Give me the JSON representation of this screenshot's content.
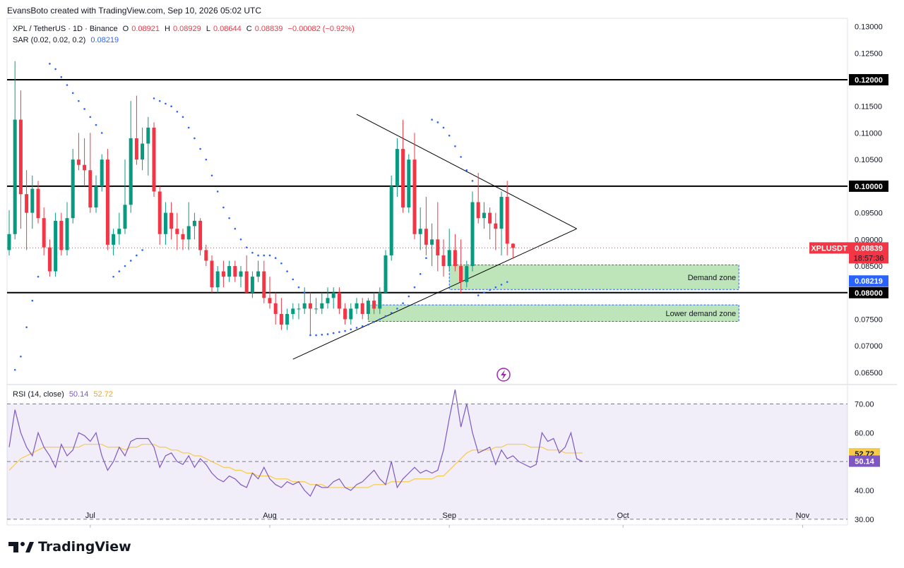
{
  "header": {
    "created_by": "EvansBoto created with TradingView.com, Sep 10, 2026 05:02 UTC"
  },
  "legend": {
    "symbol": "XPL / TetherUS · 1D · Binance",
    "o_label": "O",
    "o_value": "0.08921",
    "h_label": "H",
    "h_value": "0.08929",
    "l_label": "L",
    "l_value": "0.08644",
    "c_label": "C",
    "c_value": "0.08839",
    "change": "−0.00082 (−0.92%)",
    "sar_label": "SAR (0.02, 0.02, 0.2)",
    "sar_value": "0.08219"
  },
  "rsi_legend": {
    "label": "RSI (14, close)",
    "rsi_value": "50.14",
    "ma_value": "52.72"
  },
  "brand": {
    "name": "TradingView"
  },
  "markers": {
    "flash_icon": "lightning-icon"
  },
  "colors": {
    "up": "#089981",
    "down": "#f23645",
    "sar": "#2962ff",
    "rsi": "#7e57c2",
    "rsi_ma": "#f7c948",
    "zone_fill": "#b7e1b1",
    "zone_border": "#2962ff"
  },
  "chart_data": [
    {
      "type": "candlestick",
      "symbol": "XPLUSDT",
      "ylim": [
        0.063,
        0.131
      ],
      "y_ticks": [
        "0.13000",
        "0.12500",
        "0.12000",
        "0.11500",
        "0.11000",
        "0.10500",
        "0.10000",
        "0.09500",
        "0.09000",
        "0.08500",
        "0.08000",
        "0.07500",
        "0.07000",
        "0.06500"
      ],
      "x_ticks": [
        "Jul",
        "Aug",
        "Sep",
        "Oct",
        "Nov"
      ],
      "x_tick_days": [
        14,
        45,
        76,
        106,
        137
      ],
      "last_price_label": "XPLUSDT",
      "last_price": "0.08839",
      "countdown": "18:57:36",
      "sar_price": "0.08219",
      "horizontal_levels": [
        {
          "price": 0.12,
          "label": "0.12000"
        },
        {
          "price": 0.1,
          "label": "0.10000"
        },
        {
          "price": 0.08,
          "label": "0.08000"
        }
      ],
      "zones": [
        {
          "name": "Demand zone",
          "from_day": 76,
          "to_day": 126,
          "low": 0.0806,
          "high": 0.0852
        },
        {
          "name": "Lower demand zone",
          "from_day": 62,
          "to_day": 126,
          "low": 0.0746,
          "high": 0.0777
        }
      ],
      "triangle": {
        "upper": [
          [
            60,
            0.1135
          ],
          [
            98,
            0.092
          ]
        ],
        "lower": [
          [
            49,
            0.0675
          ],
          [
            98,
            0.092
          ]
        ]
      },
      "candles": [
        [
          0.088,
          0.0955,
          0.087,
          0.091
        ],
        [
          0.091,
          0.1235,
          0.09,
          0.1125
        ],
        [
          0.1125,
          0.118,
          0.092,
          0.0985
        ],
        [
          0.0985,
          0.103,
          0.088,
          0.095
        ],
        [
          0.095,
          0.102,
          0.092,
          0.0995
        ],
        [
          0.0995,
          0.101,
          0.093,
          0.094
        ],
        [
          0.094,
          0.096,
          0.087,
          0.0885
        ],
        [
          0.0885,
          0.09,
          0.083,
          0.084
        ],
        [
          0.084,
          0.095,
          0.083,
          0.0935
        ],
        [
          0.0935,
          0.095,
          0.087,
          0.088
        ],
        [
          0.088,
          0.097,
          0.087,
          0.094
        ],
        [
          0.094,
          0.107,
          0.093,
          0.105
        ],
        [
          0.105,
          0.11,
          0.103,
          0.104
        ],
        [
          0.104,
          0.109,
          0.1,
          0.103
        ],
        [
          0.103,
          0.11,
          0.095,
          0.096
        ],
        [
          0.096,
          0.102,
          0.095,
          0.1
        ],
        [
          0.1,
          0.106,
          0.099,
          0.105
        ],
        [
          0.105,
          0.107,
          0.088,
          0.089
        ],
        [
          0.089,
          0.092,
          0.087,
          0.091
        ],
        [
          0.091,
          0.095,
          0.089,
          0.092
        ],
        [
          0.092,
          0.105,
          0.091,
          0.0965
        ],
        [
          0.0965,
          0.116,
          0.095,
          0.109
        ],
        [
          0.109,
          0.117,
          0.104,
          0.105
        ],
        [
          0.105,
          0.111,
          0.103,
          0.108
        ],
        [
          0.108,
          0.113,
          0.102,
          0.111
        ],
        [
          0.111,
          0.112,
          0.098,
          0.099
        ],
        [
          0.099,
          0.1,
          0.089,
          0.091
        ],
        [
          0.091,
          0.097,
          0.089,
          0.095
        ],
        [
          0.095,
          0.097,
          0.09,
          0.092
        ],
        [
          0.092,
          0.095,
          0.088,
          0.091
        ],
        [
          0.091,
          0.092,
          0.088,
          0.09
        ],
        [
          0.09,
          0.097,
          0.088,
          0.0925
        ],
        [
          0.0925,
          0.095,
          0.09,
          0.0935
        ],
        [
          0.0935,
          0.094,
          0.087,
          0.088
        ],
        [
          0.088,
          0.089,
          0.085,
          0.086
        ],
        [
          0.086,
          0.087,
          0.08,
          0.081
        ],
        [
          0.081,
          0.085,
          0.08,
          0.084
        ],
        [
          0.084,
          0.086,
          0.081,
          0.083
        ],
        [
          0.083,
          0.086,
          0.082,
          0.085
        ],
        [
          0.085,
          0.086,
          0.082,
          0.083
        ],
        [
          0.083,
          0.085,
          0.081,
          0.084
        ],
        [
          0.084,
          0.087,
          0.08,
          0.08
        ],
        [
          0.08,
          0.084,
          0.079,
          0.083
        ],
        [
          0.083,
          0.086,
          0.082,
          0.084
        ],
        [
          0.084,
          0.086,
          0.078,
          0.079
        ],
        [
          0.079,
          0.083,
          0.077,
          0.078
        ],
        [
          0.078,
          0.08,
          0.074,
          0.076
        ],
        [
          0.076,
          0.079,
          0.073,
          0.074
        ],
        [
          0.074,
          0.077,
          0.073,
          0.076
        ],
        [
          0.076,
          0.078,
          0.075,
          0.077
        ],
        [
          0.077,
          0.078,
          0.075,
          0.077
        ],
        [
          0.077,
          0.081,
          0.076,
          0.078
        ],
        [
          0.078,
          0.08,
          0.072,
          0.077
        ],
        [
          0.077,
          0.079,
          0.076,
          0.077
        ],
        [
          0.077,
          0.08,
          0.076,
          0.078
        ],
        [
          0.078,
          0.081,
          0.077,
          0.079
        ],
        [
          0.079,
          0.081,
          0.077,
          0.08
        ],
        [
          0.08,
          0.081,
          0.076,
          0.077
        ],
        [
          0.077,
          0.078,
          0.074,
          0.075
        ],
        [
          0.075,
          0.078,
          0.074,
          0.077
        ],
        [
          0.077,
          0.079,
          0.076,
          0.078
        ],
        [
          0.078,
          0.079,
          0.075,
          0.076
        ],
        [
          0.076,
          0.079,
          0.075,
          0.0785
        ],
        [
          0.0785,
          0.08,
          0.076,
          0.077
        ],
        [
          0.077,
          0.081,
          0.076,
          0.08
        ],
        [
          0.08,
          0.088,
          0.08,
          0.087
        ],
        [
          0.087,
          0.102,
          0.086,
          0.1
        ],
        [
          0.1,
          0.109,
          0.098,
          0.107
        ],
        [
          0.107,
          0.1125,
          0.095,
          0.096
        ],
        [
          0.096,
          0.106,
          0.095,
          0.105
        ],
        [
          0.105,
          0.11,
          0.09,
          0.091
        ],
        [
          0.091,
          0.096,
          0.088,
          0.092
        ],
        [
          0.092,
          0.098,
          0.087,
          0.089
        ],
        [
          0.089,
          0.093,
          0.085,
          0.09
        ],
        [
          0.09,
          0.097,
          0.084,
          0.087
        ],
        [
          0.087,
          0.09,
          0.083,
          0.085
        ],
        [
          0.085,
          0.092,
          0.084,
          0.088
        ],
        [
          0.088,
          0.091,
          0.084,
          0.085
        ],
        [
          0.085,
          0.09,
          0.08,
          0.082
        ],
        [
          0.082,
          0.086,
          0.081,
          0.085
        ],
        [
          0.085,
          0.099,
          0.084,
          0.097
        ],
        [
          0.097,
          0.1025,
          0.093,
          0.094
        ],
        [
          0.094,
          0.097,
          0.092,
          0.095
        ],
        [
          0.095,
          0.096,
          0.09,
          0.093
        ],
        [
          0.093,
          0.095,
          0.088,
          0.092
        ],
        [
          0.092,
          0.099,
          0.087,
          0.098
        ],
        [
          0.098,
          0.101,
          0.087,
          0.0892
        ],
        [
          0.0892,
          0.0893,
          0.0864,
          0.0884
        ]
      ],
      "sar": [
        [
          1,
          0.0655
        ],
        [
          2,
          0.068
        ],
        [
          3,
          0.0735
        ],
        [
          4,
          0.0785
        ],
        [
          5,
          0.083
        ],
        [
          7,
          0.123
        ],
        [
          8,
          0.122
        ],
        [
          9,
          0.1205
        ],
        [
          10,
          0.119
        ],
        [
          11,
          0.1175
        ],
        [
          12,
          0.116
        ],
        [
          13,
          0.1145
        ],
        [
          14,
          0.113
        ],
        [
          15,
          0.1115
        ],
        [
          16,
          0.11
        ],
        [
          18,
          0.083
        ],
        [
          19,
          0.084
        ],
        [
          20,
          0.085
        ],
        [
          21,
          0.086
        ],
        [
          22,
          0.087
        ],
        [
          23,
          0.088
        ],
        [
          25,
          0.1165
        ],
        [
          26,
          0.116
        ],
        [
          27,
          0.1155
        ],
        [
          28,
          0.115
        ],
        [
          29,
          0.114
        ],
        [
          30,
          0.113
        ],
        [
          31,
          0.111
        ],
        [
          32,
          0.109
        ],
        [
          33,
          0.107
        ],
        [
          34,
          0.105
        ],
        [
          35,
          0.102
        ],
        [
          36,
          0.099
        ],
        [
          37,
          0.096
        ],
        [
          38,
          0.094
        ],
        [
          39,
          0.092
        ],
        [
          40,
          0.09
        ],
        [
          41,
          0.0885
        ],
        [
          42,
          0.0875
        ],
        [
          43,
          0.087
        ],
        [
          44,
          0.087
        ],
        [
          45,
          0.087
        ],
        [
          46,
          0.0865
        ],
        [
          47,
          0.0855
        ],
        [
          48,
          0.084
        ],
        [
          49,
          0.0825
        ],
        [
          50,
          0.081
        ],
        [
          51,
          0.08
        ],
        [
          52,
          0.072
        ],
        [
          53,
          0.072
        ],
        [
          54,
          0.0721
        ],
        [
          55,
          0.0722
        ],
        [
          56,
          0.0724
        ],
        [
          57,
          0.0726
        ],
        [
          58,
          0.0728
        ],
        [
          59,
          0.0731
        ],
        [
          60,
          0.0734
        ],
        [
          61,
          0.0737
        ],
        [
          62,
          0.074
        ],
        [
          63,
          0.0745
        ],
        [
          64,
          0.075
        ],
        [
          65,
          0.0756
        ],
        [
          66,
          0.0762
        ],
        [
          67,
          0.077
        ],
        [
          68,
          0.078
        ],
        [
          69,
          0.0793
        ],
        [
          70,
          0.081
        ],
        [
          71,
          0.0835
        ],
        [
          72,
          0.0865
        ],
        [
          73,
          0.1125
        ],
        [
          74,
          0.112
        ],
        [
          75,
          0.111
        ],
        [
          76,
          0.1095
        ],
        [
          77,
          0.1075
        ],
        [
          78,
          0.1055
        ],
        [
          79,
          0.103
        ],
        [
          80,
          0.101
        ],
        [
          81,
          0.0795
        ],
        [
          82,
          0.08
        ],
        [
          83,
          0.0805
        ],
        [
          84,
          0.081
        ],
        [
          85,
          0.0815
        ],
        [
          86,
          0.082
        ]
      ]
    },
    {
      "type": "line",
      "name": "RSI (14, close)",
      "ylim": [
        28,
        76
      ],
      "y_ticks": [
        "70.00",
        "60.00",
        "50.00",
        "40.00",
        "30.00"
      ],
      "bands": {
        "upper": 70,
        "middle": 50,
        "lower": 30
      },
      "series": [
        {
          "name": "RSI",
          "values": [
            55,
            68,
            60,
            55,
            52,
            60,
            55,
            52,
            48,
            56,
            52,
            54,
            60,
            59,
            57,
            60,
            52,
            47,
            50,
            55,
            52,
            57,
            58,
            58,
            58,
            55,
            48,
            52,
            53,
            50,
            49,
            52,
            48,
            51,
            49,
            46,
            44,
            43,
            45,
            44,
            42,
            41,
            46,
            44,
            48,
            44,
            42,
            41,
            43,
            42,
            43,
            40,
            38,
            42,
            41,
            41,
            43,
            44,
            41,
            40,
            42,
            43,
            45,
            47,
            44,
            42,
            50,
            41,
            44,
            46,
            48,
            46,
            47,
            46,
            47,
            54,
            65,
            75,
            62,
            70,
            60,
            53,
            54,
            55,
            49,
            54,
            51,
            52,
            50,
            49,
            48,
            49,
            60,
            57,
            58,
            53,
            55,
            60,
            51,
            50
          ],
          "rsi_current": "50.14"
        },
        {
          "name": "RSI-based MA",
          "values": [
            47,
            49,
            51,
            52,
            53,
            54,
            55,
            55,
            55,
            55,
            55,
            55,
            55,
            56,
            56,
            56,
            56,
            55,
            55,
            55,
            54,
            55,
            55,
            56,
            56,
            56,
            55,
            55,
            54,
            54,
            53,
            53,
            52,
            52,
            51,
            50,
            49,
            48,
            48,
            47,
            47,
            46,
            46,
            45,
            45,
            45,
            44,
            44,
            44,
            43,
            43,
            43,
            42,
            42,
            42,
            41,
            41,
            41,
            41,
            41,
            41,
            41,
            41,
            42,
            42,
            42,
            43,
            43,
            43,
            43,
            44,
            44,
            44,
            44,
            45,
            45,
            47,
            49,
            51,
            53,
            54,
            54,
            54,
            54,
            55,
            55,
            56,
            56,
            56,
            56,
            55,
            55,
            55,
            54,
            54,
            54,
            53,
            53,
            53,
            53
          ],
          "ma_current": "52.72"
        }
      ]
    }
  ]
}
